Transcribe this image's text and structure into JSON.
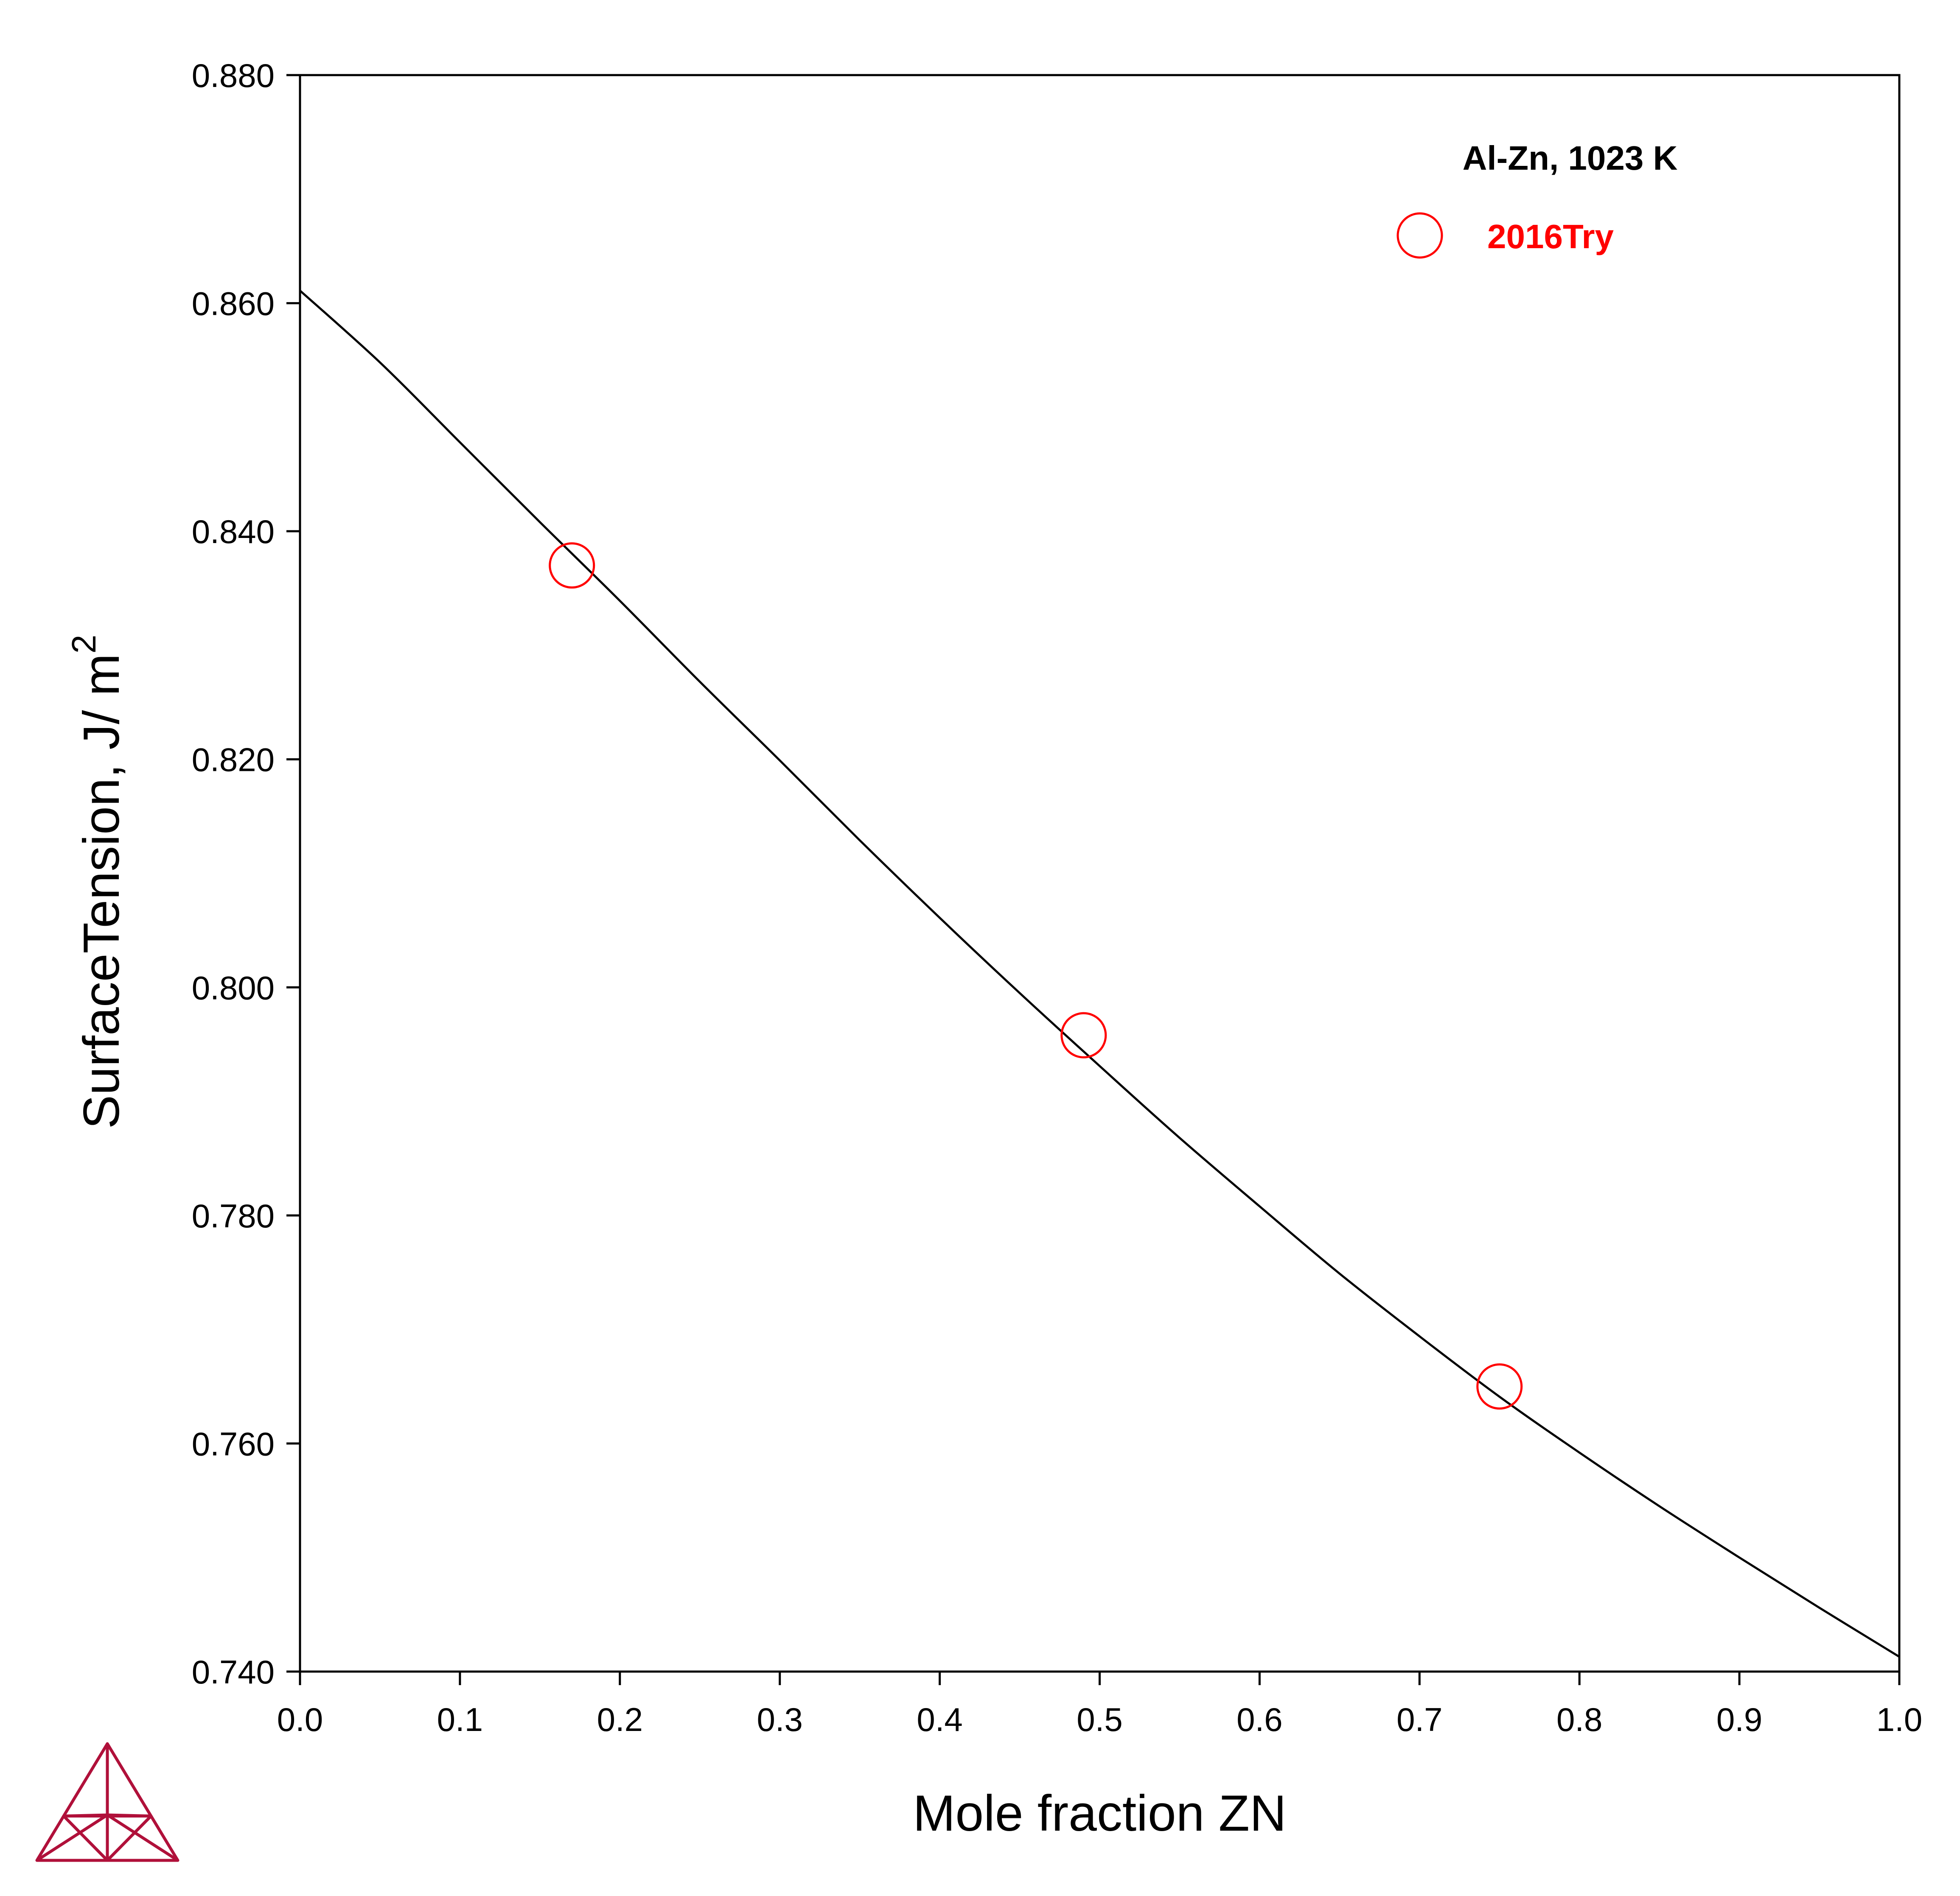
{
  "chart_data": {
    "type": "scatter",
    "xlabel": "Mole fraction ZN",
    "ylabel": "SurfaceTension, J/ m",
    "ylabel_superscript": "2",
    "xlim": [
      0.0,
      1.0
    ],
    "ylim": [
      0.74,
      0.88
    ],
    "x_ticks": [
      0.0,
      0.1,
      0.2,
      0.3,
      0.4,
      0.5,
      0.6,
      0.7,
      0.8,
      0.9,
      1.0
    ],
    "x_tick_labels": [
      "0.0",
      "0.1",
      "0.2",
      "0.3",
      "0.4",
      "0.5",
      "0.6",
      "0.7",
      "0.8",
      "0.9",
      "1.0"
    ],
    "y_ticks": [
      0.74,
      0.76,
      0.78,
      0.8,
      0.82,
      0.84,
      0.86,
      0.88
    ],
    "y_tick_labels": [
      "0.740",
      "0.760",
      "0.780",
      "0.800",
      "0.820",
      "0.840",
      "0.860",
      "0.880"
    ],
    "grid": false,
    "legend": {
      "title": "Al-Zn, 1023 K",
      "placement": "top-right",
      "entries": [
        {
          "label": "2016Try",
          "marker": "open-circle",
          "color": "#ff0000"
        }
      ]
    },
    "series": [
      {
        "kind": "line",
        "color": "#000000",
        "x": [
          0.0,
          0.05,
          0.1,
          0.15,
          0.2,
          0.25,
          0.3,
          0.35,
          0.4,
          0.45,
          0.5,
          0.55,
          0.6,
          0.65,
          0.7,
          0.75,
          0.8,
          0.85,
          0.9,
          0.95,
          1.0
        ],
        "y": [
          0.8611,
          0.8548,
          0.8478,
          0.8408,
          0.8339,
          0.8268,
          0.8199,
          0.8129,
          0.8061,
          0.7995,
          0.7931,
          0.7868,
          0.7808,
          0.7749,
          0.7694,
          0.7641,
          0.7592,
          0.7545,
          0.75,
          0.7456,
          0.7413
        ]
      },
      {
        "name": "2016Try",
        "kind": "scatter",
        "color": "#ff0000",
        "marker": "open-circle",
        "x": [
          0.17,
          0.49,
          0.75
        ],
        "y": [
          0.837,
          0.7958,
          0.765
        ]
      }
    ]
  },
  "logo": {
    "name": "thermo-calc-logo",
    "color": "#b0103a"
  }
}
